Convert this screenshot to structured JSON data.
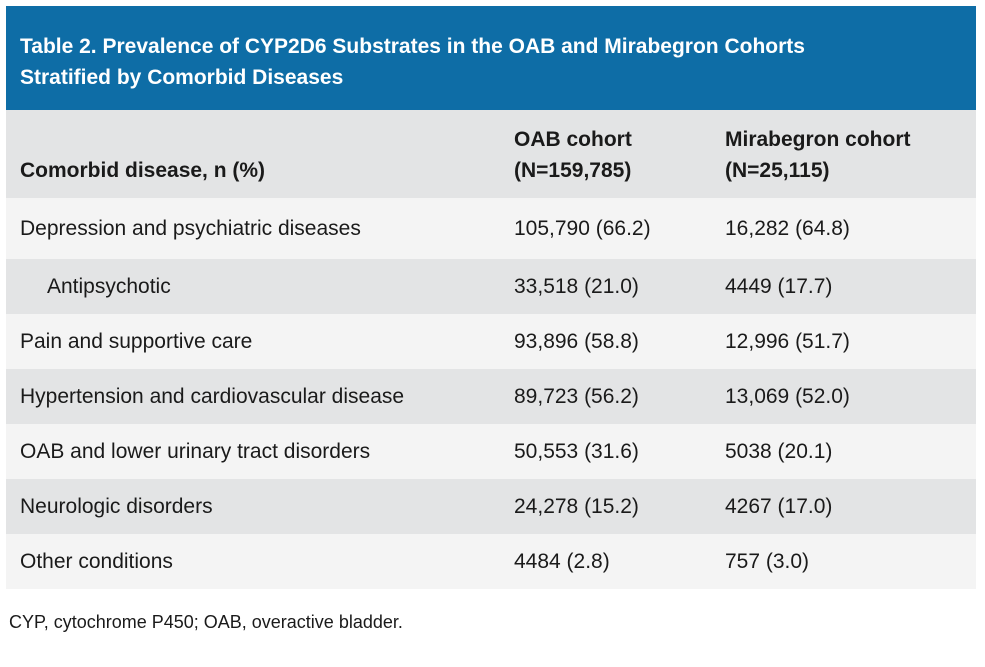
{
  "table": {
    "title_line1": "Table 2. Prevalence of CYP2D6 Substrates in the OAB and Mirabegron Cohorts",
    "title_line2": "Stratified by Comorbid Diseases",
    "headers": {
      "col1": "Comorbid disease, n (%)",
      "col2_line1": "OAB cohort",
      "col2_line2": "(N=159,785)",
      "col3_line1": "Mirabegron cohort",
      "col3_line2": "(N=25,115)"
    },
    "rows": [
      {
        "disease": "Depression and psychiatric diseases",
        "oab": "105,790 (66.2)",
        "mirabegron": "16,282 (64.8)"
      },
      {
        "disease": "Antipsychotic",
        "oab": "33,518 (21.0)",
        "mirabegron": "4449 (17.7)"
      },
      {
        "disease": "Pain and supportive care",
        "oab": "93,896 (58.8)",
        "mirabegron": "12,996 (51.7)"
      },
      {
        "disease": "Hypertension and cardiovascular disease",
        "oab": "89,723 (56.2)",
        "mirabegron": "13,069 (52.0)"
      },
      {
        "disease": "OAB and lower urinary tract disorders",
        "oab": "50,553 (31.6)",
        "mirabegron": "5038 (20.1)"
      },
      {
        "disease": "Neurologic disorders",
        "oab": "24,278 (15.2)",
        "mirabegron": "4267 (17.0)"
      },
      {
        "disease": "Other conditions",
        "oab": "4484 (2.8)",
        "mirabegron": "757 (3.0)"
      }
    ],
    "footnote": "CYP, cytochrome P450; OAB, overactive bladder."
  },
  "colors": {
    "title_background": "#0e6da6",
    "header_background": "#e3e4e5",
    "row_light": "#f4f4f4"
  }
}
